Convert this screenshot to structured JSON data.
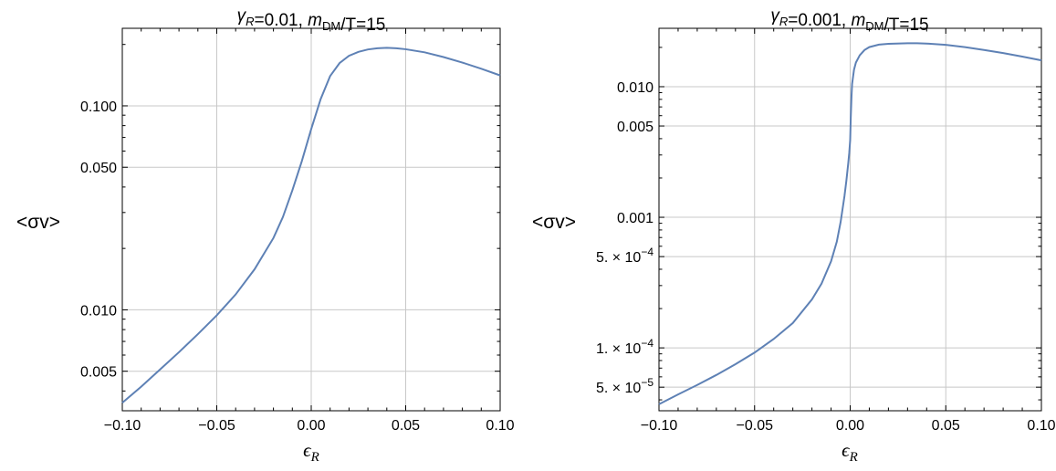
{
  "chart_data": [
    {
      "type": "line",
      "title_parts": [
        {
          "text": "γ",
          "italic": true
        },
        {
          "text": "R",
          "italic": true,
          "sub": true
        },
        {
          "text": "=0.01, "
        },
        {
          "text": "m",
          "italic": true
        },
        {
          "text": "DM",
          "sub": true
        },
        {
          "text": "/T=15"
        }
      ],
      "ylabel": "<σv>",
      "xlabel": "ϵ",
      "xlabel_sub": "R",
      "x_scale": "linear",
      "y_scale": "log",
      "xlim": [
        -0.1,
        0.1
      ],
      "ylim": [
        0.0032,
        0.24
      ],
      "x_ticks": [
        -0.1,
        -0.05,
        0.0,
        0.05,
        0.1
      ],
      "x_tick_labels": [
        "-0.10",
        "-0.05",
        "0.00",
        "0.05",
        "0.10"
      ],
      "y_ticks": [
        0.005,
        0.01,
        0.05,
        0.1
      ],
      "y_tick_labels": [
        "0.005",
        "0.010",
        "0.050",
        "0.100"
      ],
      "grid": true,
      "series": [
        {
          "x": [
            -0.1,
            -0.09,
            -0.08,
            -0.07,
            -0.06,
            -0.05,
            -0.04,
            -0.03,
            -0.02,
            -0.015,
            -0.01,
            -0.005,
            0.0,
            0.005,
            0.01,
            0.015,
            0.02,
            0.025,
            0.03,
            0.035,
            0.04,
            0.045,
            0.05,
            0.06,
            0.07,
            0.08,
            0.09,
            0.1
          ],
          "y": [
            0.0035,
            0.0042,
            0.0051,
            0.0062,
            0.0076,
            0.0094,
            0.0119,
            0.0158,
            0.0225,
            0.0285,
            0.0385,
            0.0535,
            0.077,
            0.108,
            0.14,
            0.162,
            0.176,
            0.184,
            0.189,
            0.1915,
            0.1925,
            0.1915,
            0.1895,
            0.183,
            0.1735,
            0.163,
            0.152,
            0.141
          ],
          "color": "#5e81b5"
        }
      ]
    },
    {
      "type": "line",
      "title_parts": [
        {
          "text": "γ",
          "italic": true
        },
        {
          "text": "R",
          "italic": true,
          "sub": true
        },
        {
          "text": "=0.001, "
        },
        {
          "text": "m",
          "italic": true
        },
        {
          "text": "DM",
          "sub": true
        },
        {
          "text": "/T=15"
        }
      ],
      "ylabel": "<σv>",
      "xlabel": "ϵ",
      "xlabel_sub": "R",
      "x_scale": "linear",
      "y_scale": "log",
      "xlim": [
        -0.1,
        0.1
      ],
      "ylim": [
        3.3e-05,
        0.028
      ],
      "x_ticks": [
        -0.1,
        -0.05,
        0.0,
        0.05,
        0.1
      ],
      "x_tick_labels": [
        "-0.10",
        "-0.05",
        "0.00",
        "0.05",
        "0.10"
      ],
      "y_ticks": [
        5e-05,
        0.0001,
        0.0005,
        0.001,
        0.005,
        0.01
      ],
      "y_tick_labels": [
        {
          "mant": "5.",
          "exp": "-5"
        },
        {
          "mant": "1.",
          "exp": "-4"
        },
        {
          "mant": "5.",
          "exp": "-4"
        },
        "0.001",
        "0.005",
        "0.010"
      ],
      "grid": true,
      "series": [
        {
          "x": [
            -0.1,
            -0.09,
            -0.08,
            -0.07,
            -0.06,
            -0.05,
            -0.04,
            -0.03,
            -0.02,
            -0.015,
            -0.01,
            -0.007,
            -0.005,
            -0.003,
            -0.002,
            -0.001,
            -0.0005,
            0.0,
            0.0003,
            0.0007,
            0.001,
            0.002,
            0.003,
            0.005,
            0.0075,
            0.01,
            0.015,
            0.02,
            0.03,
            0.035,
            0.04,
            0.05,
            0.06,
            0.07,
            0.08,
            0.09,
            0.1
          ],
          "y": [
            3.7e-05,
            4.4e-05,
            5.2e-05,
            6.2e-05,
            7.5e-05,
            9.2e-05,
            0.000117,
            0.000155,
            0.000235,
            0.00031,
            0.00046,
            0.00065,
            0.00092,
            0.00145,
            0.0019,
            0.0026,
            0.0031,
            0.0039,
            0.0058,
            0.0085,
            0.0105,
            0.0135,
            0.0153,
            0.0174,
            0.0191,
            0.0201,
            0.021,
            0.0213,
            0.0215,
            0.0215,
            0.0214,
            0.0209,
            0.0201,
            0.0191,
            0.0181,
            0.017,
            0.0159
          ],
          "color": "#5e81b5"
        }
      ]
    }
  ]
}
